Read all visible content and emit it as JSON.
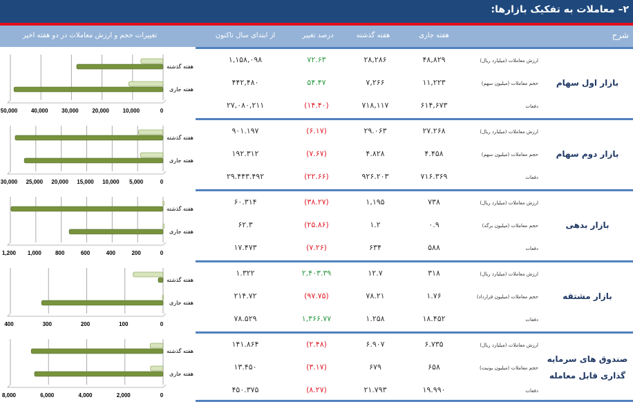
{
  "title": "۲– معاملات به تفکیک بازارها:",
  "headers": {
    "desc": "شرح",
    "current_week": "هفته جاری",
    "last_week": "هفته گذشته",
    "pct_change": "درصد تغییر",
    "ytd": "از ابتدای سال تاکنون",
    "chart": "تغییرات حجم و ارزش معاملات در دو هفته اخیر"
  },
  "colors": {
    "title_bg": "#1f497d",
    "header_bg": "#95b3d7",
    "separator": "#4f81bd",
    "accent_red": "#e0101a",
    "positive": "#2e9a44",
    "negative": "#e0202a",
    "bar_light": "#d7e4bd",
    "bar_dark": "#77933c"
  },
  "markets": [
    {
      "name": "بازار اول سهام",
      "rows": [
        {
          "label": "ارزش معاملات (میلیارد ریال)",
          "current": "۴۸,۸۲۹",
          "last": "۲۸,۲۸۶",
          "pct": "۷۲.۶۳",
          "pct_sign": "pos",
          "ytd": "۱,۱۵۸,۰۹۸"
        },
        {
          "label": "حجم معاملات (میلیون سهم)",
          "current": "۱۱,۲۲۳",
          "last": "۷,۲۶۶",
          "pct": "۵۴.۴۷",
          "pct_sign": "pos",
          "ytd": "۴۴۲,۴۸۰"
        },
        {
          "label": "دفعات",
          "current": "۶۱۴,۶۷۳",
          "last": "۷۱۸,۱۱۷",
          "pct": "(۱۴.۴۰)",
          "pct_sign": "neg",
          "ytd": "۲۷,۰۸۰,۲۱۱"
        }
      ]
    },
    {
      "name": "بازار دوم سهام",
      "rows": [
        {
          "label": "ارزش معاملات (میلیارد ریال)",
          "current": "۲۷.۲۶۸",
          "last": "۲۹.۰۶۳",
          "pct": "(۶.۱۷)",
          "pct_sign": "neg",
          "ytd": "۹۰۱.۱۹۷"
        },
        {
          "label": "حجم معاملات (میلیون سهم)",
          "current": "۴.۴۵۸",
          "last": "۴.۸۲۸",
          "pct": "(۷.۶۷)",
          "pct_sign": "neg",
          "ytd": "۱۹۲.۳۱۲"
        },
        {
          "label": "دفعات",
          "current": "۷۱۶.۳۶۹",
          "last": "۹۲۶.۲۰۳",
          "pct": "(۲۲.۶۶)",
          "pct_sign": "neg",
          "ytd": "۲۹.۴۴۳.۴۹۲"
        }
      ]
    },
    {
      "name": "بازار بدهی",
      "rows": [
        {
          "label": "ارزش معاملات (میلیارد ریال)",
          "current": "۷۳۸",
          "last": "۱,۱۹۵",
          "pct": "(۳۸.۲۷)",
          "pct_sign": "neg",
          "ytd": "۶۰.۳۱۴"
        },
        {
          "label": "حجم معاملات (میلیون برگه)",
          "current": "۰.۹",
          "last": "۱.۲",
          "pct": "(۲۵.۸۶)",
          "pct_sign": "neg",
          "ytd": "۶۲.۳"
        },
        {
          "label": "دفعات",
          "current": "۵۸۸",
          "last": "۶۳۴",
          "pct": "(۷.۲۶)",
          "pct_sign": "neg",
          "ytd": "۱۷.۴۷۳"
        }
      ]
    },
    {
      "name": "بازار مشتقه",
      "rows": [
        {
          "label": "ارزش معاملات (میلیارد ریال)",
          "current": "۳۱۸",
          "last": "۱۲.۷",
          "pct": "۲,۴۰۳.۳۹",
          "pct_sign": "pos",
          "ytd": "۱.۳۲۲"
        },
        {
          "label": "حجم معاملات (میلیون قرارداد)",
          "current": "۱.۷۶",
          "last": "۷۸.۲۱",
          "pct": "(۹۷.۷۵)",
          "pct_sign": "neg",
          "ytd": "۲۱۴.۷۲"
        },
        {
          "label": "دفعات",
          "current": "۱۸.۴۵۲",
          "last": "۱.۲۵۸",
          "pct": "۱,۳۶۶.۷۷",
          "pct_sign": "pos",
          "ytd": "۷۸.۵۲۹"
        }
      ]
    },
    {
      "name": "صندوق های سرمایه گذاری قابل معامله",
      "rows": [
        {
          "label": "ارزش معاملات (میلیارد ریال)",
          "current": "۶.۷۳۵",
          "last": "۶.۹۰۷",
          "pct": "(۲.۴۸)",
          "pct_sign": "neg",
          "ytd": "۱۴۱.۸۶۴"
        },
        {
          "label": "حجم معاملات (میلیون یونیت)",
          "current": "۶۵۸",
          "last": "۶۷۹",
          "pct": "(۳.۱۷)",
          "pct_sign": "neg",
          "ytd": "۱۳.۴۵۰"
        },
        {
          "label": "دفعات",
          "current": "۱۹.۹۹۰",
          "last": "۲۱.۷۹۳",
          "pct": "(۸.۲۷)",
          "pct_sign": "neg",
          "ytd": "۴۵۰.۳۷۵"
        }
      ]
    }
  ],
  "chart_data": [
    {
      "type": "bar",
      "orientation": "horizontal-reversed",
      "categories": [
        "هفته گذشته",
        "هفته جاری"
      ],
      "series": [
        {
          "values": [
            7266,
            11223
          ]
        },
        {
          "values": [
            28286,
            48829
          ]
        }
      ],
      "xlim": [
        0,
        50000
      ],
      "ticks": [
        "0",
        "10,000",
        "20,000",
        "30,000",
        "40,000",
        "50,000"
      ],
      "tick_values": [
        0,
        10000,
        20000,
        30000,
        40000,
        50000
      ],
      "grid": true
    },
    {
      "type": "bar",
      "orientation": "horizontal-reversed",
      "categories": [
        "هفته گذشته",
        "هفته جاری"
      ],
      "series": [
        {
          "values": [
            4828,
            4458
          ]
        },
        {
          "values": [
            29063,
            27268
          ]
        }
      ],
      "xlim": [
        0,
        30000
      ],
      "ticks": [
        "0",
        "5,000",
        "10,000",
        "15,000",
        "20,000",
        "25,000",
        "30,000"
      ],
      "tick_values": [
        0,
        5000,
        10000,
        15000,
        20000,
        25000,
        30000
      ],
      "grid": true
    },
    {
      "type": "bar",
      "orientation": "horizontal-reversed",
      "categories": [
        "هفته گذشته",
        "هفته جاری"
      ],
      "series": [
        {
          "values": [
            1.2,
            0.9
          ]
        },
        {
          "values": [
            1195,
            738
          ]
        }
      ],
      "xlim": [
        0,
        1200
      ],
      "ticks": [
        "0",
        "200",
        "400",
        "600",
        "800",
        "1,000",
        "1,200"
      ],
      "tick_values": [
        0,
        200,
        400,
        600,
        800,
        1000,
        1200
      ],
      "grid": true
    },
    {
      "type": "bar",
      "orientation": "horizontal-reversed",
      "categories": [
        "هفته گذشته",
        "هفته جاری"
      ],
      "series": [
        {
          "values": [
            78.21,
            1.76
          ]
        },
        {
          "values": [
            12.7,
            318
          ]
        }
      ],
      "xlim": [
        0,
        400
      ],
      "ticks": [
        "0",
        "100",
        "200",
        "300",
        "400"
      ],
      "tick_values": [
        0,
        100,
        200,
        300,
        400
      ],
      "grid": true
    },
    {
      "type": "bar",
      "orientation": "horizontal-reversed",
      "categories": [
        "هفته گذشته",
        "هفته جاری"
      ],
      "series": [
        {
          "values": [
            679,
            658
          ]
        },
        {
          "values": [
            6907,
            6735
          ]
        }
      ],
      "xlim": [
        0,
        8000
      ],
      "ticks": [
        "0",
        "2,000",
        "4,000",
        "6,000",
        "8,000"
      ],
      "tick_values": [
        0,
        2000,
        4000,
        6000,
        8000
      ],
      "grid": true
    }
  ]
}
